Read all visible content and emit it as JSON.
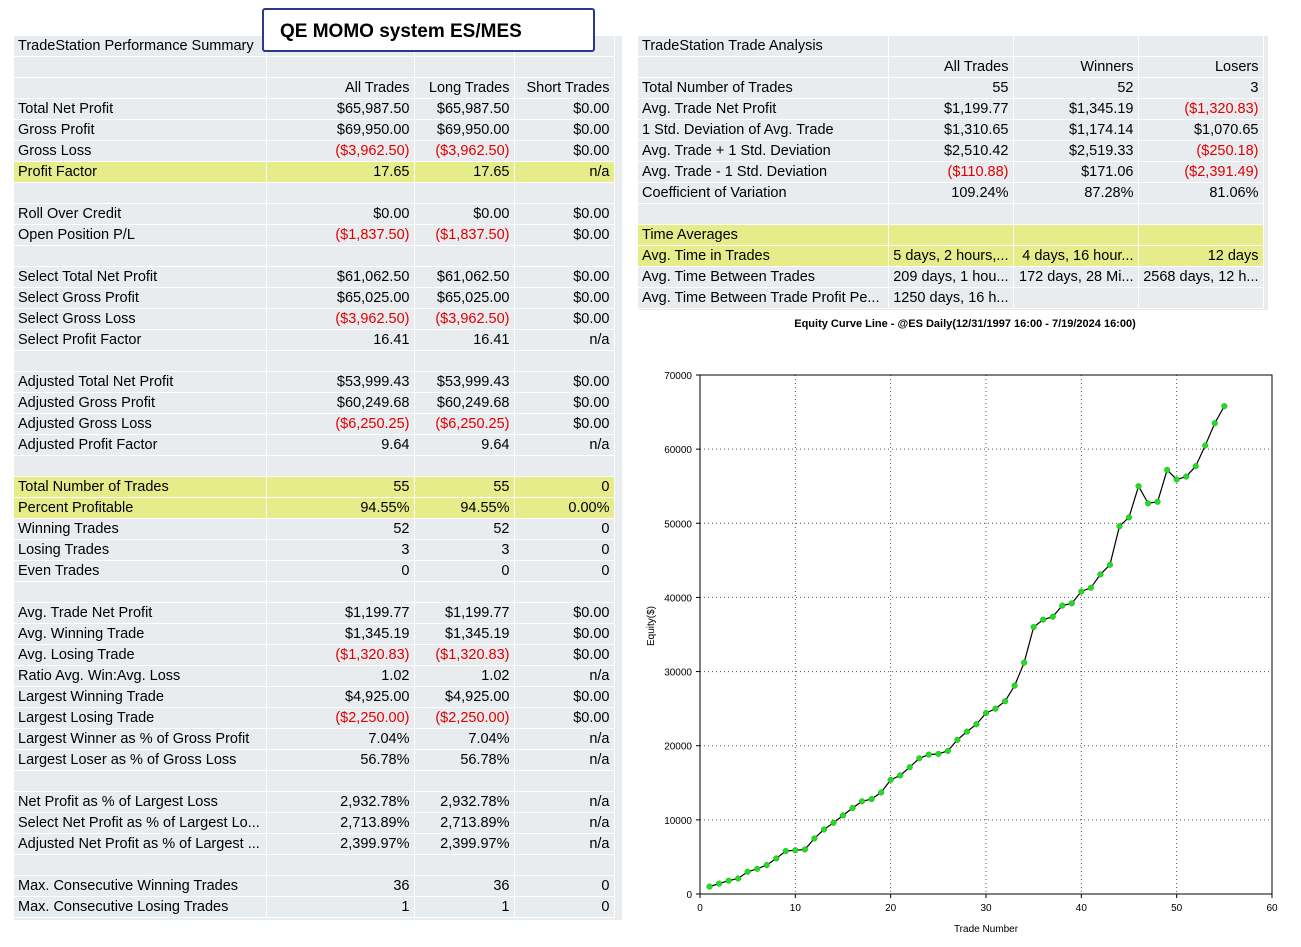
{
  "overlay_title": "QE MOMO system ES/MES",
  "left": {
    "title": "TradeStation Performance Summary",
    "headers": [
      "All Trades",
      "Long Trades",
      "Short Trades"
    ],
    "rows": [
      {
        "label": "Total Net Profit",
        "v": [
          "$65,987.50",
          "$65,987.50",
          "$0.00"
        ]
      },
      {
        "label": "Gross Profit",
        "v": [
          "$69,950.00",
          "$69,950.00",
          "$0.00"
        ]
      },
      {
        "label": "Gross Loss",
        "v": [
          "($3,962.50)",
          "($3,962.50)",
          "$0.00"
        ]
      },
      {
        "label": "Profit Factor",
        "v": [
          "17.65",
          "17.65",
          "n/a"
        ]
      },
      {
        "label": "",
        "v": [
          "",
          "",
          ""
        ]
      },
      {
        "label": "Roll Over Credit",
        "v": [
          "$0.00",
          "$0.00",
          "$0.00"
        ]
      },
      {
        "label": "Open Position P/L",
        "v": [
          "($1,837.50)",
          "($1,837.50)",
          "$0.00"
        ]
      },
      {
        "label": "",
        "v": [
          "",
          "",
          ""
        ]
      },
      {
        "label": "Select Total Net Profit",
        "v": [
          "$61,062.50",
          "$61,062.50",
          "$0.00"
        ]
      },
      {
        "label": "Select Gross Profit",
        "v": [
          "$65,025.00",
          "$65,025.00",
          "$0.00"
        ]
      },
      {
        "label": "Select Gross Loss",
        "v": [
          "($3,962.50)",
          "($3,962.50)",
          "$0.00"
        ]
      },
      {
        "label": "Select Profit Factor",
        "v": [
          "16.41",
          "16.41",
          "n/a"
        ]
      },
      {
        "label": "",
        "v": [
          "",
          "",
          ""
        ]
      },
      {
        "label": "Adjusted Total Net Profit",
        "v": [
          "$53,999.43",
          "$53,999.43",
          "$0.00"
        ]
      },
      {
        "label": "Adjusted Gross Profit",
        "v": [
          "$60,249.68",
          "$60,249.68",
          "$0.00"
        ]
      },
      {
        "label": "Adjusted Gross Loss",
        "v": [
          "($6,250.25)",
          "($6,250.25)",
          "$0.00"
        ]
      },
      {
        "label": "Adjusted Profit Factor",
        "v": [
          "9.64",
          "9.64",
          "n/a"
        ]
      },
      {
        "label": "",
        "v": [
          "",
          "",
          ""
        ]
      },
      {
        "label": "Total Number of Trades",
        "v": [
          "55",
          "55",
          "0"
        ]
      },
      {
        "label": "Percent Profitable",
        "v": [
          "94.55%",
          "94.55%",
          "0.00%"
        ]
      },
      {
        "label": "Winning Trades",
        "v": [
          "52",
          "52",
          "0"
        ]
      },
      {
        "label": "Losing Trades",
        "v": [
          "3",
          "3",
          "0"
        ]
      },
      {
        "label": "Even Trades",
        "v": [
          "0",
          "0",
          "0"
        ]
      },
      {
        "label": "",
        "v": [
          "",
          "",
          ""
        ]
      },
      {
        "label": "Avg. Trade Net Profit",
        "v": [
          "$1,199.77",
          "$1,199.77",
          "$0.00"
        ]
      },
      {
        "label": "Avg. Winning Trade",
        "v": [
          "$1,345.19",
          "$1,345.19",
          "$0.00"
        ]
      },
      {
        "label": "Avg. Losing Trade",
        "v": [
          "($1,320.83)",
          "($1,320.83)",
          "$0.00"
        ]
      },
      {
        "label": "Ratio Avg. Win:Avg. Loss",
        "v": [
          "1.02",
          "1.02",
          "n/a"
        ]
      },
      {
        "label": "Largest Winning Trade",
        "v": [
          "$4,925.00",
          "$4,925.00",
          "$0.00"
        ]
      },
      {
        "label": "Largest Losing Trade",
        "v": [
          "($2,250.00)",
          "($2,250.00)",
          "$0.00"
        ]
      },
      {
        "label": "Largest Winner as % of Gross Profit",
        "v": [
          "7.04%",
          "7.04%",
          "n/a"
        ]
      },
      {
        "label": "Largest Loser as % of Gross Loss",
        "v": [
          "56.78%",
          "56.78%",
          "n/a"
        ]
      },
      {
        "label": "",
        "v": [
          "",
          "",
          ""
        ]
      },
      {
        "label": "Net Profit as % of Largest Loss",
        "v": [
          "2,932.78%",
          "2,932.78%",
          "n/a"
        ]
      },
      {
        "label": "Select Net Profit as % of Largest Lo...",
        "v": [
          "2,713.89%",
          "2,713.89%",
          "n/a"
        ]
      },
      {
        "label": "Adjusted Net Profit as % of Largest ...",
        "v": [
          "2,399.97%",
          "2,399.97%",
          "n/a"
        ]
      },
      {
        "label": "",
        "v": [
          "",
          "",
          ""
        ]
      },
      {
        "label": "Max. Consecutive Winning Trades",
        "v": [
          "36",
          "36",
          "0"
        ]
      },
      {
        "label": "Max. Consecutive Losing Trades",
        "v": [
          "1",
          "1",
          "0"
        ]
      }
    ]
  },
  "right": {
    "title": "TradeStation Trade Analysis",
    "headers": [
      "All Trades",
      "Winners",
      "Losers"
    ],
    "rows": [
      {
        "label": "Total Number of Trades",
        "v": [
          "55",
          "52",
          "3"
        ]
      },
      {
        "label": "Avg. Trade Net Profit",
        "v": [
          "$1,199.77",
          "$1,345.19",
          "($1,320.83)"
        ]
      },
      {
        "label": "1 Std. Deviation of Avg. Trade",
        "v": [
          "$1,310.65",
          "$1,174.14",
          "$1,070.65"
        ]
      },
      {
        "label": "Avg. Trade + 1 Std. Deviation",
        "v": [
          "$2,510.42",
          "$2,519.33",
          "($250.18)"
        ]
      },
      {
        "label": "Avg. Trade - 1 Std. Deviation",
        "v": [
          "($110.88)",
          "$171.06",
          "($2,391.49)"
        ]
      },
      {
        "label": "Coefficient of Variation",
        "v": [
          "109.24%",
          "87.28%",
          "81.06%"
        ]
      },
      {
        "label": "",
        "v": [
          "",
          "",
          ""
        ]
      },
      {
        "label": "Time Averages",
        "v": [
          "",
          "",
          ""
        ]
      },
      {
        "label": "Avg. Time in Trades",
        "v": [
          "5 days, 2 hours,...",
          "4 days, 16 hour...",
          "12 days"
        ]
      },
      {
        "label": "Avg. Time Between Trades",
        "v": [
          "209 days, 1 hou...",
          "172 days, 28 Mi...",
          "2568 days, 12 h..."
        ]
      },
      {
        "label": "Avg. Time Between Trade Profit Pe...",
        "v": [
          "1250 days, 16 h...",
          "",
          ""
        ]
      }
    ]
  },
  "chart_data": {
    "type": "line",
    "title": "Equity Curve Line - @ES Daily(12/31/1997 16:00 - 7/19/2024 16:00)",
    "xlabel": "Trade Number",
    "ylabel": "Equity($)",
    "xlim": [
      0,
      60
    ],
    "ylim": [
      0,
      70000
    ],
    "xticks": [
      "0",
      "10",
      "20",
      "30",
      "40",
      "50",
      "60"
    ],
    "yticks": [
      "0",
      "10000",
      "20000",
      "30000",
      "40000",
      "50000",
      "60000",
      "70000"
    ],
    "grid": true,
    "line_color": "#000000",
    "marker_color": "#22dd22",
    "x": [
      1,
      2,
      3,
      4,
      5,
      6,
      7,
      8,
      9,
      10,
      11,
      12,
      13,
      14,
      15,
      16,
      17,
      18,
      19,
      20,
      21,
      22,
      23,
      24,
      25,
      26,
      27,
      28,
      29,
      30,
      31,
      32,
      33,
      34,
      35,
      36,
      37,
      38,
      39,
      40,
      41,
      42,
      43,
      44,
      45,
      46,
      47,
      48,
      49,
      50,
      51,
      52,
      53,
      54,
      55
    ],
    "y": [
      1000,
      1400,
      1800,
      2100,
      3000,
      3400,
      3900,
      4800,
      5800,
      5900,
      6000,
      7500,
      8700,
      9600,
      10600,
      11600,
      12500,
      12800,
      13700,
      15400,
      16000,
      17100,
      18300,
      18800,
      18900,
      19300,
      20800,
      21900,
      22900,
      24400,
      25000,
      26000,
      28100,
      31200,
      36000,
      37000,
      37400,
      38900,
      39200,
      40800,
      41300,
      43100,
      44400,
      49600,
      50800,
      55000,
      52700,
      52900,
      57200,
      55900,
      56300,
      57700,
      60500,
      63500,
      65800
    ]
  }
}
